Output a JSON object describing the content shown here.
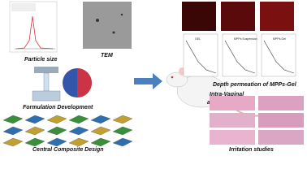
{
  "panels": {
    "particle_size": "Particle size",
    "tem": "TEM",
    "formulation": "Formulation Development",
    "ccd": "Central Composite Design",
    "administration": [
      "Intra-Vaginal",
      "administration"
    ],
    "permeation_title": "Depth permeation of MPPs-Gel",
    "permeation_labels": [
      "GEL",
      "MPPs Suspension",
      "MPPs-Gel"
    ],
    "irritation": "Irritation studies"
  }
}
